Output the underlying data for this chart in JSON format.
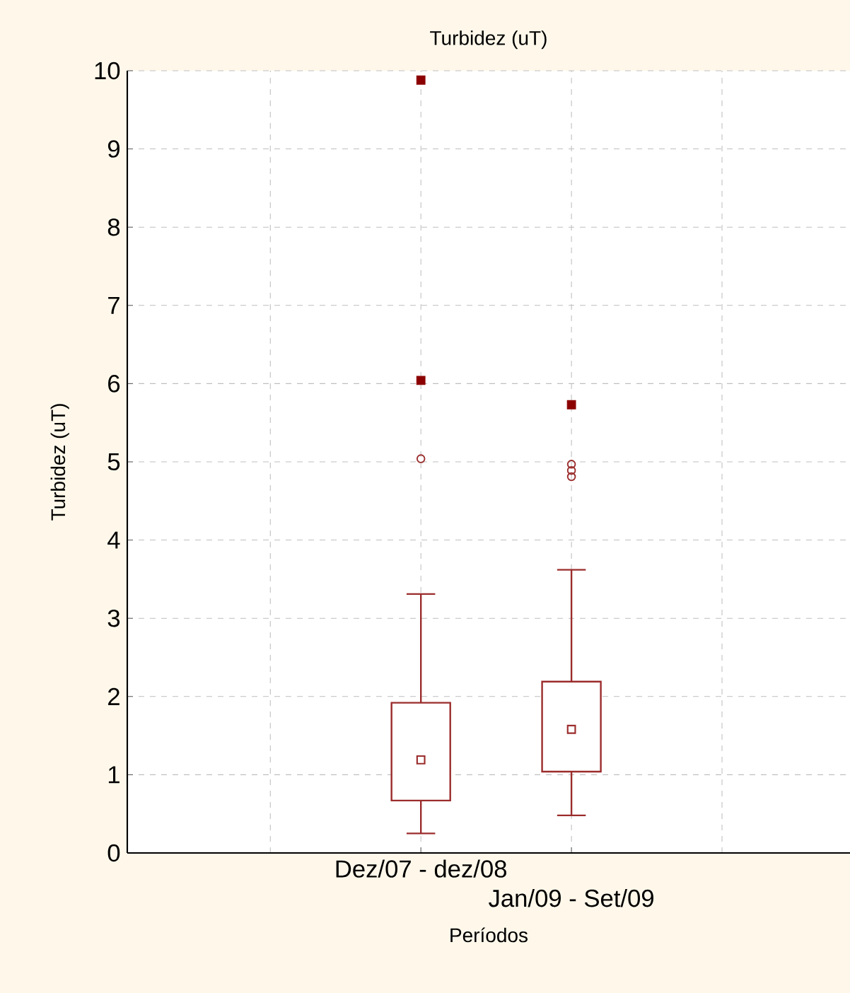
{
  "chart_data": {
    "type": "box",
    "title": "Turbidez (uT)",
    "xlabel": "Períodos",
    "ylabel": "Turbidez (uT)",
    "categories": [
      "Dez/07 - dez/08",
      "Jan/09 - Set/09"
    ],
    "color": "#9b2c2c",
    "boxes": [
      {
        "low": 0.25,
        "q1": 0.67,
        "median": 1.19,
        "q3": 1.92,
        "high": 3.31,
        "outliers": [
          5.04
        ]
      },
      {
        "low": 0.48,
        "q1": 1.04,
        "median": 1.58,
        "q3": 2.19,
        "high": 3.62,
        "outliers": [
          4.97,
          4.89,
          4.81
        ]
      }
    ],
    "series": [
      {
        "type": "scatter",
        "marker": "square",
        "color": "#8b0000",
        "x": [
          "Dez/07 - dez/08",
          "Dez/07 - dez/08",
          "Jan/09 - Set/09"
        ],
        "values": [
          9.88,
          6.04,
          5.73
        ]
      }
    ],
    "ylim": [
      0,
      10
    ],
    "yticks": [
      0,
      1,
      2,
      3,
      4,
      5,
      6,
      7,
      8,
      9,
      10
    ],
    "grid": true
  }
}
